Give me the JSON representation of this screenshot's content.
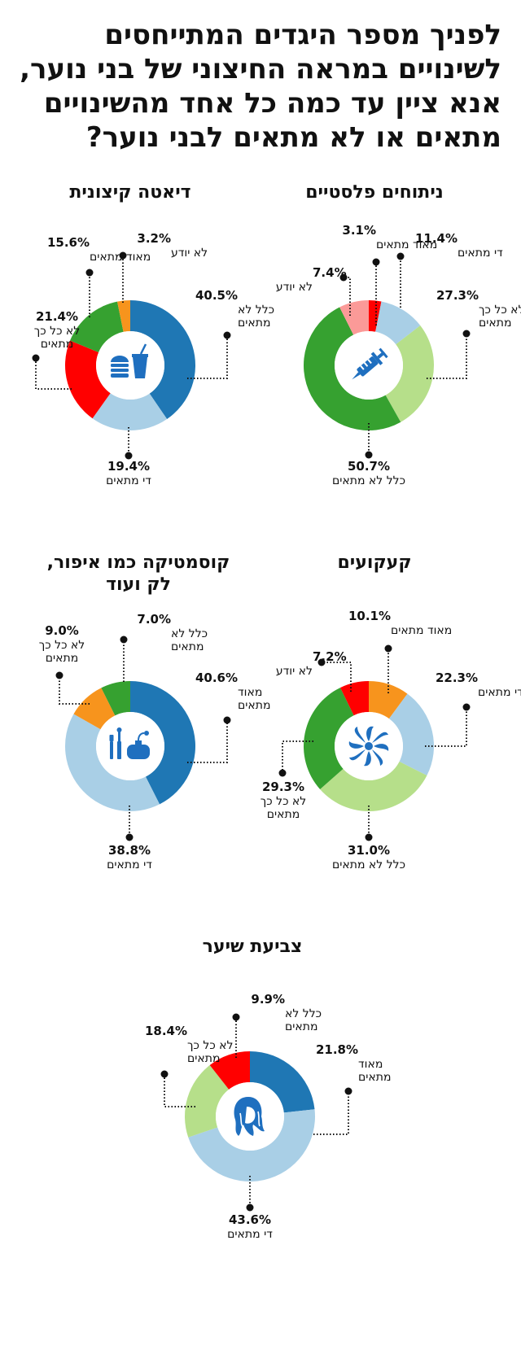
{
  "title": [
    "לפניך מספר היגדים המתייחסים",
    "לשינויים במראה החיצוני של בני נוער,",
    "אנא ציין עד כמה כל  אחד מהשינויים",
    "מתאים או לא מתאים לבני נוער?"
  ],
  "colors": {
    "very_suitable": "#1f77b4",
    "fairly_suitable": "#a9cfe6",
    "not_at_all": "#36a130",
    "not_so": "#b6df8a",
    "dont_know": "#fb9a98",
    "red": "#ff0000",
    "orange": "#f7941d"
  },
  "chart_data": [
    {
      "type": "pie",
      "icon": "syringe-icon",
      "title": [
        "ניתוחים פלסטיים"
      ],
      "slices": [
        {
          "value": 3.1,
          "pct": "3.1%",
          "label": [
            "מאוד מתאים"
          ],
          "color": "#ff0000"
        },
        {
          "value": 11.4,
          "pct": "11.4%",
          "label": [
            "די מתאים"
          ],
          "color": "#a9cfe6"
        },
        {
          "value": 27.3,
          "pct": "27.3%",
          "label": [
            "לא כל כך",
            "מתאים"
          ],
          "color": "#b6df8a"
        },
        {
          "value": 50.7,
          "pct": "50.7%",
          "label": [
            "כלל לא מתאים"
          ],
          "color": "#36a130"
        },
        {
          "value": 7.4,
          "pct": "7.4%",
          "label": [
            "לא יודע"
          ],
          "color": "#fb9a98"
        }
      ]
    },
    {
      "type": "pie",
      "icon": "fast-food-icon",
      "title": [
        "דיאטה קיצונית"
      ],
      "slices": [
        {
          "value": 40.5,
          "pct": "40.5%",
          "label": [
            "כלל לא",
            "מתאים"
          ],
          "color": "#1f77b4"
        },
        {
          "value": 19.4,
          "pct": "19.4%",
          "label": [
            "די מתאים"
          ],
          "color": "#a9cfe6"
        },
        {
          "value": 21.4,
          "pct": "21.4%",
          "label": [
            "לא כל כך",
            "מתאים"
          ],
          "color": "#ff0000"
        },
        {
          "value": 15.6,
          "pct": "15.6%",
          "label": [
            "מאוד מתאים"
          ],
          "color": "#36a130"
        },
        {
          "value": 3.2,
          "pct": "3.2%",
          "label": [
            "לא יודע"
          ],
          "color": "#f7941d"
        }
      ]
    },
    {
      "type": "pie",
      "icon": "tattoo-icon",
      "title": [
        "קעקועים"
      ],
      "slices": [
        {
          "value": 10.1,
          "pct": "10.1%",
          "label": [
            "מאוד מתאים"
          ],
          "color": "#f7941d"
        },
        {
          "value": 22.3,
          "pct": "22.3%",
          "label": [
            "די מתאים"
          ],
          "color": "#a9cfe6"
        },
        {
          "value": 31.0,
          "pct": "31.0%",
          "label": [
            "כלל לא מתאים"
          ],
          "color": "#b6df8a"
        },
        {
          "value": 29.3,
          "pct": "29.3%",
          "label": [
            "לא כל כך",
            "מתאים"
          ],
          "color": "#36a130"
        },
        {
          "value": 7.2,
          "pct": "7.2%",
          "label": [
            "לא יודע"
          ],
          "color": "#ff0000"
        }
      ]
    },
    {
      "type": "pie",
      "icon": "cosmetics-icon",
      "title": [
        "קוסמטיקה כמו איפור,",
        "לק ועוד"
      ],
      "slices": [
        {
          "value": 40.6,
          "pct": "40.6%",
          "label": [
            "מאוד",
            "מתאים"
          ],
          "color": "#1f77b4"
        },
        {
          "value": 38.8,
          "pct": "38.8%",
          "label": [
            "די מתאים"
          ],
          "color": "#a9cfe6"
        },
        {
          "value": 9.0,
          "pct": "9.0%",
          "label": [
            "לא כל כך",
            "מתאים"
          ],
          "color": "#f7941d"
        },
        {
          "value": 7.0,
          "pct": "7.0%",
          "label": [
            "כלל לא",
            "מתאים"
          ],
          "color": "#36a130"
        }
      ]
    },
    {
      "type": "pie",
      "icon": "hair-dye-icon",
      "title": [
        "צביעת שיער"
      ],
      "slices": [
        {
          "value": 21.8,
          "pct": "21.8%",
          "label": [
            "מאוד",
            "מתאים"
          ],
          "color": "#1f77b4"
        },
        {
          "value": 43.6,
          "pct": "43.6%",
          "label": [
            "די מתאים"
          ],
          "color": "#a9cfe6"
        },
        {
          "value": 18.4,
          "pct": "18.4%",
          "label": [
            "לא כל כך",
            "מתאים"
          ],
          "color": "#b6df8a"
        },
        {
          "value": 9.9,
          "pct": "9.9%",
          "label": [
            "כלל לא",
            "מתאים"
          ],
          "color": "#ff0000"
        }
      ]
    }
  ]
}
